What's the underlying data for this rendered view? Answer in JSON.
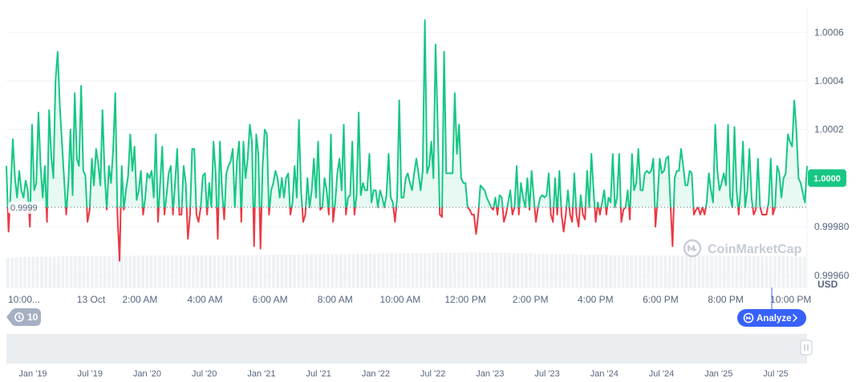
{
  "chart_data": {
    "type": "line",
    "title": "",
    "xlabel": "",
    "ylabel": "",
    "unit_label": "USD",
    "ylim": [
      0.99955,
      1.0007
    ],
    "y_ticks": [
      "1.0006",
      "1.0004",
      "1.0002",
      "1.0000",
      "0.99980",
      "0.99960"
    ],
    "y_tick_values": [
      1.0006,
      1.0004,
      1.0002,
      1.0,
      0.9998,
      0.9996
    ],
    "x_ticks": [
      "10:00...",
      "13 Oct",
      "2:00 AM",
      "4:00 AM",
      "6:00 AM",
      "8:00 AM",
      "10:00 AM",
      "12:00 PM",
      "2:00 PM",
      "4:00 PM",
      "6:00 PM",
      "8:00 PM",
      "10:00 PM"
    ],
    "x_tick_hours": [
      -12,
      -9.5,
      -8,
      -6,
      -4,
      -2,
      0,
      2,
      4,
      6,
      8,
      10,
      12
    ],
    "reference_value": 0.99988,
    "reference_label": "0.9999",
    "current_price": 1.0,
    "current_price_label": "1.0000",
    "colors": {
      "up": "#16c784",
      "down": "#ea3943",
      "badge": "#16c784",
      "button": "#3861fb"
    },
    "series": [
      {
        "values": [
          1.00005,
          0.99978,
          0.99995,
          1.00016,
          1.0,
          0.99992,
          1.00003,
          0.99995,
          0.99992,
          0.99999,
          0.99995,
          0.9998,
          1.00022,
          0.99995,
          0.99998,
          1.00027,
          1.00005,
          0.99992,
          1.00005,
          0.99982,
          1.00028,
          1.00009,
          1.0,
          1.0004,
          1.00052,
          1.0003,
          1.00015,
          1.0,
          0.99985,
          0.99998,
          1.0002,
          0.99993,
          1.00035,
          1.00008,
          1.00005,
          1.00038,
          1.00003,
          1.00001,
          0.99982,
          0.99987,
          1.00008,
          0.99997,
          1.00012,
          1.00006,
          0.99997,
          1.00028,
          1.00002,
          0.99987,
          1.00005,
          0.99998,
          1.00012,
          1.00035,
          0.99985,
          0.99966,
          1.00005,
          0.99987,
          0.99995,
          1.00001,
          1.00018,
          1.00003,
          1.00013,
          0.99991,
          0.99995,
          1.00003,
          0.99985,
          0.99992,
          1.00002,
          1.0,
          1.00003,
          0.99992,
          1.00018,
          0.99982,
          0.99998,
          1.00013,
          0.99985,
          0.99993,
          1.00002,
          1.00005,
          0.99985,
          0.99998,
          1.00012,
          0.99985,
          0.99985,
          1.00005,
          0.99998,
          0.99975,
          0.99985,
          1.00012,
          1.00012,
          0.99985,
          0.99982,
          0.99988,
          1.00001,
          1.00002,
          0.99985,
          0.99998,
          0.99988,
          1.00015,
          1.00002,
          0.99975,
          1.00015,
          0.99995,
          0.99983,
          1.00002,
          1.00005,
          1.00007,
          1.00012,
          0.99988,
          1.00007,
          1.00015,
          0.99982,
          1.00015,
          1.0,
          1.00008,
          1.00022,
          1.00015,
          0.99972,
          1.00018,
          1.0001,
          0.99971,
          1.00005,
          1.0002,
          1.00018,
          0.99985,
          0.99995,
          0.99998,
          1.00003,
          1.0,
          0.99992,
          1.0,
          0.99992,
          1.0,
          1.00002,
          0.99985,
          0.9999,
          1.00005,
          0.99992,
          1.00024,
          0.99995,
          0.99982,
          0.99985,
          1.0,
          0.99988,
          0.99995,
          1.00008,
          0.99992,
          1.00015,
          0.99987,
          0.99988,
          1.0,
          0.99995,
          0.99985,
          1.00018,
          0.99982,
          0.9999,
          1.00002,
          1.00008,
          0.99995,
          1.00022,
          0.99985,
          0.99992,
          0.99993,
          1.00015,
          0.99985,
          0.99993,
          1.00027,
          0.99993,
          0.99998,
          0.99995,
          0.99995,
          1.0001,
          0.9999,
          0.99995,
          0.99995,
          0.99988,
          0.99995,
          0.99992,
          0.99988,
          0.99993,
          1.0001,
          0.99992,
          0.9999,
          0.99982,
          0.99992,
          1.00032,
          0.99992,
          0.99992,
          1.0,
          1.00002,
          0.99998,
          0.99995,
          1.00002,
          1.00008,
          1.00002,
          0.99995,
          1.00003,
          1.00065,
          1.00002,
          1.00005,
          1.00015,
          1.0,
          1.00055,
          1.00022,
          0.99985,
          0.99984,
          1.00052,
          1.00002,
          1.00002,
          1.00002,
          1.00002,
          1.00035,
          1.0001,
          1.00022,
          1.0,
          0.99998,
          0.99998,
          0.99988,
          0.99987,
          0.99985,
          0.99985,
          0.99977,
          0.99985,
          0.99997,
          0.99996,
          0.99995,
          0.99992,
          0.9999,
          0.99988,
          0.99987,
          0.99992,
          0.99985,
          0.99993,
          0.99992,
          0.99982,
          0.99985,
          0.9999,
          0.99995,
          0.99985,
          0.99988,
          1.00005,
          0.99985,
          0.99998,
          0.99992,
          0.99988,
          1.0,
          0.99987,
          1.00003,
          0.99992,
          0.99982,
          0.99988,
          0.99992,
          0.99993,
          0.99992,
          0.99993,
          1.00002,
          0.99985,
          0.99982,
          1.0,
          0.99985,
          1.00003,
          0.99985,
          0.99978,
          0.99985,
          0.99995,
          0.99985,
          0.99982,
          1.00002,
          0.99985,
          0.9998,
          0.99993,
          0.99985,
          0.99983,
          1.00003,
          0.99988,
          1.0001,
          0.99995,
          0.99982,
          0.9999,
          0.99985,
          0.9999,
          0.99995,
          0.99985,
          0.99992,
          0.9999,
          1.0001,
          0.99988,
          0.99992,
          1.0001,
          0.99982,
          0.99987,
          0.99988,
          0.99995,
          0.99983,
          1.0001,
          0.99995,
          0.99998,
          1.00012,
          0.99995,
          0.99995,
          1.00002,
          1.00003,
          1.00002,
          1.00003,
          1.00008,
          0.9998,
          0.99992,
          1.00008,
          1.00002,
          1.00003,
          1.00008,
          1.00009,
          0.9999,
          0.99972,
          1.0,
          1.00003,
          1.00003,
          1.00012,
          1.00005,
          0.99997,
          0.99997,
          1.00003,
          1.00002,
          0.99985,
          0.99987,
          0.99988,
          0.99985,
          0.99988,
          0.99985,
          0.9999,
          1.00002,
          0.99995,
          0.9999,
          1.00022,
          1.00003,
          0.99995,
          0.99998,
          1.00002,
          0.99997,
          1.00022,
          0.99992,
          0.99988,
          1.00021,
          0.99995,
          0.99985,
          0.99997,
          1.00015,
          0.99988,
          0.99995,
          1.00012,
          0.99992,
          0.99985,
          0.99987,
          1.00008,
          0.99988,
          0.99985,
          0.99985,
          0.99985,
          0.9999,
          1.00008,
          0.99985,
          0.99988,
          1.00005,
          1.00002,
          0.99992,
          1.0,
          1.00002,
          1.00018,
          1.00015,
          1.00013,
          1.00032,
          1.0002,
          1.0,
          0.99998,
          0.99994,
          0.9999,
          1.00005
        ]
      }
    ],
    "navigator_ticks": [
      "Jan '19",
      "Jul '19",
      "Jan '20",
      "Jul '20",
      "Jan '21",
      "Jul '21",
      "Jan '22",
      "Jul '22",
      "Jan '23",
      "Jul '23",
      "Jan '24",
      "Jul '24",
      "Jan '25",
      "Jul '25"
    ],
    "volume_profile": [
      0.78,
      0.8,
      0.82,
      0.82,
      0.83,
      0.83,
      0.84,
      0.84,
      0.85,
      0.86,
      0.87,
      0.88,
      0.89,
      0.9,
      0.91,
      0.9,
      0.88,
      0.86,
      0.85,
      0.84,
      0.83,
      0.83,
      0.82,
      0.82,
      0.8
    ],
    "grid": true
  },
  "watermark": {
    "text": "CoinMarketCap",
    "icon": "coinmarketcap-logo-icon"
  },
  "controls": {
    "zoom_count": "10",
    "zoom_icon": "history-icon",
    "analyze_label": "Analyze",
    "analyze_icon": "coinmarketcap-logo-icon",
    "analyze_arrow": "chevron-right-icon"
  }
}
